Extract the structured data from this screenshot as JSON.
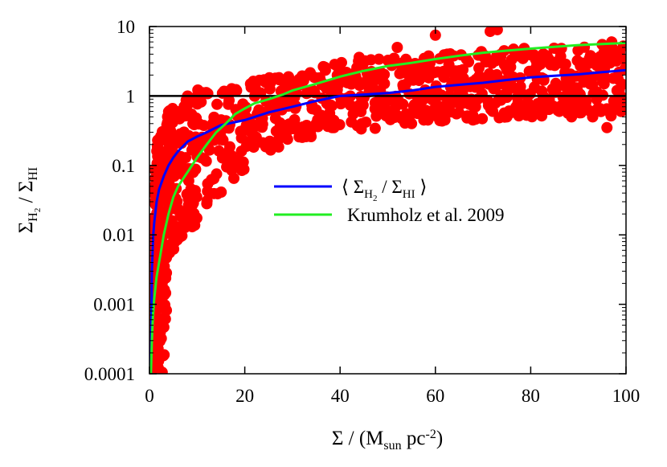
{
  "chart_data": {
    "type": "scatter",
    "xlabel": {
      "base": "Σ / (M",
      "sub": "sun",
      "mid": " pc",
      "sup": "-2",
      "end": ")"
    },
    "ylabel": {
      "sym1": "Σ",
      "sub1": "H",
      "subsub1": "2",
      "mid": " / Σ",
      "sub2": "HI"
    },
    "xlim": [
      0,
      100
    ],
    "ylim": [
      0.0001,
      10
    ],
    "yscale": "log",
    "x_ticks": [
      0,
      20,
      40,
      60,
      80,
      100
    ],
    "x_tick_labels": [
      "0",
      "20",
      "40",
      "60",
      "80",
      "100"
    ],
    "y_ticks": [
      0.0001,
      0.001,
      0.01,
      0.1,
      1,
      10
    ],
    "y_tick_labels": [
      "0.0001",
      "0.001",
      "0.01",
      "0.1",
      "1",
      "10"
    ],
    "grid": false,
    "legend_position": "center-right",
    "reference_line": {
      "y": 1,
      "color": "#000000"
    },
    "series": [
      {
        "type": "scatter",
        "color": "#ff0000",
        "upper_envelope": {
          "x": [
            0.3,
            0.6,
            1,
            1.5,
            2,
            3,
            4,
            5,
            6,
            8,
            10,
            15,
            20,
            30,
            40,
            50,
            60,
            70,
            80,
            90,
            100
          ],
          "y": [
            0.0003,
            0.01,
            0.08,
            0.2,
            0.3,
            0.5,
            0.65,
            0.8,
            0.95,
            1.1,
            1.25,
            1.5,
            1.7,
            2.3,
            3,
            3.6,
            4.2,
            4.6,
            5,
            5.2,
            5.4
          ]
        },
        "lower_envelope": {
          "x": [
            0.3,
            1,
            2,
            3,
            4,
            5,
            6,
            8,
            10,
            12,
            15,
            20,
            25,
            30,
            40,
            50,
            60,
            70,
            80,
            90,
            100
          ],
          "y": [
            0.0001,
            0.0001,
            0.0001,
            0.0001,
            0.003,
            0.006,
            0.008,
            0.01,
            0.013,
            0.025,
            0.04,
            0.09,
            0.15,
            0.22,
            0.3,
            0.35,
            0.4,
            0.45,
            0.5,
            0.5,
            0.5
          ]
        },
        "outliers": {
          "x": [
            71.5,
            60,
            73,
            96,
            93,
            94,
            75,
            82,
            86,
            88,
            62,
            55,
            95,
            97,
            52,
            44
          ],
          "y": [
            8.5,
            7.5,
            9,
            0.35,
            0.5,
            0.65,
            0.5,
            0.55,
            0.6,
            0.58,
            0.45,
            0.4,
            5.5,
            6,
            5,
            3.6
          ]
        }
      },
      {
        "name": "mean",
        "type": "line",
        "color": "#0000ff",
        "x": [
          0.3,
          0.5,
          0.8,
          1,
          1.5,
          2,
          3,
          4,
          5,
          6,
          8,
          10,
          12,
          15,
          20,
          25,
          30,
          35,
          40,
          45,
          50,
          55,
          60,
          65,
          70,
          75,
          80,
          85,
          90,
          95,
          100
        ],
        "y": [
          0.0001,
          0.003,
          0.01,
          0.015,
          0.03,
          0.045,
          0.07,
          0.1,
          0.13,
          0.16,
          0.22,
          0.26,
          0.3,
          0.38,
          0.45,
          0.58,
          0.7,
          0.85,
          1.0,
          1.05,
          1.1,
          1.2,
          1.35,
          1.45,
          1.55,
          1.7,
          1.85,
          1.95,
          2.05,
          2.2,
          2.35
        ]
      },
      {
        "name": "Krumholz et al. 2009",
        "type": "line",
        "color": "#22ee22",
        "x": [
          0.3,
          0.5,
          0.75,
          1,
          1.5,
          2,
          3,
          4,
          5,
          6,
          8,
          10,
          12,
          14,
          16,
          18,
          20,
          22,
          25,
          28,
          30,
          35,
          40,
          45,
          50,
          55,
          60,
          65,
          70,
          75,
          80,
          85,
          90,
          95,
          100
        ],
        "y": [
          0.0001,
          0.0003,
          0.0007,
          0.0012,
          0.0025,
          0.004,
          0.01,
          0.02,
          0.035,
          0.05,
          0.08,
          0.13,
          0.2,
          0.3,
          0.4,
          0.55,
          0.66,
          0.78,
          0.9,
          1.05,
          1.2,
          1.5,
          1.9,
          2.3,
          2.7,
          3.0,
          3.4,
          3.8,
          4.2,
          4.5,
          4.8,
          5.1,
          5.4,
          5.6,
          5.8
        ]
      }
    ],
    "legend": {
      "mean": {
        "open": "⟨ Σ",
        "sub1": "H",
        "subsub1": "2",
        "mid": " / Σ",
        "sub2": "HI",
        "close": " ⟩"
      },
      "krumholz": "Krumholz et al. 2009"
    }
  }
}
